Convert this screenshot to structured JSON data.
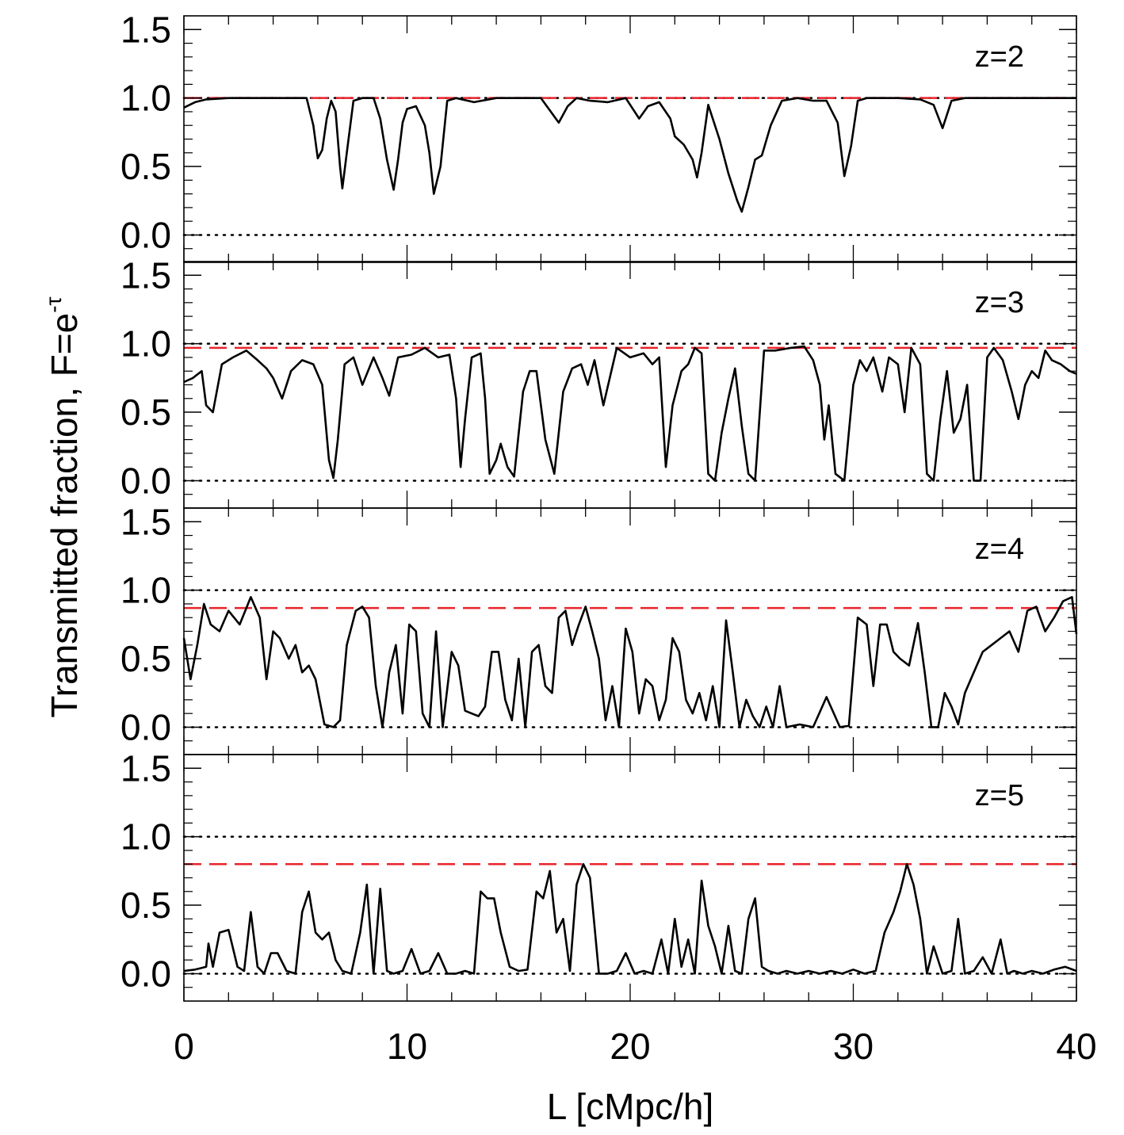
{
  "chart_data": {
    "type": "line",
    "layout": "4 vertically stacked panels sharing the x axis",
    "xlabel": "L [cMpc/h]",
    "ylabel_main": "Transmitted fraction, F=e",
    "ylabel_superscript": "-τ",
    "xlim": [
      0,
      40
    ],
    "ylim": [
      -0.2,
      1.6
    ],
    "x_ticks": [
      0,
      10,
      20,
      30,
      40
    ],
    "x_tick_labels": [
      "0",
      "10",
      "20",
      "30",
      "40"
    ],
    "y_ticks": [
      0.0,
      0.5,
      1.0,
      1.5
    ],
    "y_tick_labels": [
      "0.0",
      "0.5",
      "1.0",
      "1.5"
    ],
    "reference_lines": {
      "levels": [
        0.0,
        1.0
      ],
      "style": "dotted",
      "color": "#000000"
    },
    "mean_flux_line": {
      "style": "dashed",
      "color": "#e8232a"
    },
    "curve_color": "#000000",
    "panels": [
      {
        "label": "z=2",
        "mean_flux": 1.0,
        "x": [
          0,
          0.5,
          1,
          2,
          3,
          4,
          5,
          5.5,
          5.8,
          6.0,
          6.2,
          6.4,
          6.6,
          6.8,
          7.0,
          7.1,
          7.3,
          7.6,
          8,
          8.5,
          8.8,
          9.1,
          9.4,
          9.6,
          9.8,
          10.0,
          10.4,
          10.8,
          11.0,
          11.2,
          11.5,
          11.8,
          12.2,
          13,
          14,
          15,
          16,
          16.8,
          17.2,
          17.6,
          18.2,
          19,
          19.8,
          20.4,
          20.8,
          21.3,
          21.8,
          22.0,
          22.4,
          22.8,
          23.0,
          23.2,
          23.5,
          24.0,
          24.4,
          24.8,
          25.0,
          25.3,
          25.6,
          25.9,
          26.3,
          26.8,
          27.5,
          28.2,
          28.8,
          29.3,
          29.6,
          29.9,
          30.2,
          30.6,
          31.2,
          32,
          33,
          33.6,
          34.0,
          34.4,
          35,
          36,
          37,
          38,
          39,
          40
        ],
        "values": [
          0.93,
          0.97,
          0.99,
          1.0,
          1.0,
          1.0,
          1.0,
          1.0,
          0.8,
          0.56,
          0.62,
          0.85,
          0.98,
          0.9,
          0.5,
          0.34,
          0.6,
          0.98,
          1.0,
          1.0,
          0.85,
          0.55,
          0.33,
          0.55,
          0.82,
          0.92,
          0.94,
          0.8,
          0.6,
          0.3,
          0.5,
          0.98,
          1.0,
          0.97,
          1.0,
          1.0,
          1.0,
          0.82,
          0.94,
          1.0,
          0.98,
          0.97,
          1.0,
          0.85,
          0.94,
          0.97,
          0.85,
          0.72,
          0.66,
          0.55,
          0.42,
          0.6,
          0.95,
          0.7,
          0.45,
          0.25,
          0.17,
          0.35,
          0.55,
          0.58,
          0.8,
          0.98,
          1.0,
          0.98,
          0.98,
          0.82,
          0.43,
          0.65,
          0.98,
          1.0,
          1.0,
          1.0,
          0.99,
          0.95,
          0.78,
          0.98,
          1.0,
          1.0,
          1.0,
          1.0,
          1.0,
          1.0
        ]
      },
      {
        "label": "z=3",
        "mean_flux": 0.97,
        "x": [
          0,
          0.4,
          0.8,
          1.0,
          1.3,
          1.7,
          2.2,
          2.8,
          3.3,
          3.7,
          4.0,
          4.4,
          4.8,
          5.3,
          5.8,
          6.2,
          6.5,
          6.7,
          6.9,
          7.2,
          7.6,
          8.0,
          8.5,
          8.9,
          9.2,
          9.6,
          10.2,
          10.8,
          11.4,
          11.9,
          12.2,
          12.4,
          12.6,
          12.9,
          13.3,
          13.5,
          13.7,
          14.0,
          14.2,
          14.5,
          14.8,
          15.2,
          15.5,
          15.8,
          16.2,
          16.6,
          17.0,
          17.4,
          17.8,
          18.1,
          18.4,
          18.8,
          19.4,
          20.0,
          20.6,
          21.0,
          21.3,
          21.6,
          21.9,
          22.3,
          22.6,
          22.9,
          23.2,
          23.5,
          23.8,
          24.1,
          24.4,
          24.7,
          25.0,
          25.3,
          25.6,
          26.0,
          26.5,
          27.2,
          27.8,
          28.2,
          28.5,
          28.7,
          28.9,
          29.2,
          29.6,
          30.0,
          30.3,
          30.6,
          30.9,
          31.3,
          31.6,
          32.0,
          32.3,
          32.6,
          33.0,
          33.3,
          33.6,
          33.9,
          34.2,
          34.5,
          34.8,
          35.1,
          35.4,
          35.7,
          36.0,
          36.3,
          36.7,
          37.1,
          37.4,
          37.7,
          38.0,
          38.3,
          38.6,
          38.9,
          39.3,
          39.7,
          40
        ],
        "values": [
          0.72,
          0.75,
          0.8,
          0.55,
          0.5,
          0.85,
          0.9,
          0.95,
          0.88,
          0.82,
          0.75,
          0.6,
          0.8,
          0.88,
          0.85,
          0.7,
          0.15,
          0.02,
          0.3,
          0.85,
          0.9,
          0.7,
          0.9,
          0.75,
          0.62,
          0.9,
          0.92,
          0.97,
          0.9,
          0.92,
          0.6,
          0.1,
          0.45,
          0.9,
          0.93,
          0.6,
          0.05,
          0.15,
          0.27,
          0.1,
          0.03,
          0.65,
          0.8,
          0.8,
          0.3,
          0.05,
          0.65,
          0.82,
          0.85,
          0.7,
          0.88,
          0.55,
          0.97,
          0.9,
          0.93,
          0.85,
          0.9,
          0.1,
          0.55,
          0.8,
          0.85,
          0.97,
          0.93,
          0.05,
          0.0,
          0.35,
          0.6,
          0.82,
          0.4,
          0.05,
          0.0,
          0.95,
          0.95,
          0.97,
          0.98,
          0.88,
          0.7,
          0.3,
          0.55,
          0.05,
          0.0,
          0.7,
          0.88,
          0.8,
          0.9,
          0.65,
          0.9,
          0.85,
          0.5,
          0.97,
          0.85,
          0.05,
          0.0,
          0.45,
          0.8,
          0.35,
          0.45,
          0.7,
          0.0,
          0.0,
          0.9,
          0.97,
          0.88,
          0.65,
          0.45,
          0.7,
          0.8,
          0.75,
          0.95,
          0.88,
          0.85,
          0.8,
          0.78
        ]
      },
      {
        "label": "z=4",
        "mean_flux": 0.87,
        "x": [
          0,
          0.3,
          0.6,
          0.9,
          1.2,
          1.6,
          2.0,
          2.5,
          3.0,
          3.4,
          3.7,
          4.0,
          4.3,
          4.7,
          5.0,
          5.3,
          5.6,
          5.9,
          6.3,
          6.7,
          7.0,
          7.3,
          7.7,
          8.0,
          8.3,
          8.6,
          8.9,
          9.2,
          9.5,
          9.8,
          10.1,
          10.4,
          10.7,
          11.0,
          11.3,
          11.6,
          12.0,
          12.3,
          12.6,
          12.9,
          13.2,
          13.5,
          13.8,
          14.1,
          14.4,
          14.7,
          15.0,
          15.3,
          15.6,
          15.9,
          16.2,
          16.5,
          16.8,
          17.1,
          17.4,
          17.7,
          18.0,
          18.3,
          18.6,
          18.9,
          19.2,
          19.5,
          19.8,
          20.1,
          20.4,
          20.7,
          21.0,
          21.3,
          21.6,
          21.9,
          22.2,
          22.5,
          22.8,
          23.1,
          23.4,
          23.7,
          24.0,
          24.3,
          24.6,
          24.9,
          25.2,
          25.5,
          25.8,
          26.1,
          26.4,
          26.7,
          27.0,
          27.6,
          28.2,
          28.8,
          29.4,
          29.8,
          30.2,
          30.6,
          30.9,
          31.2,
          31.5,
          31.8,
          32.1,
          32.5,
          32.9,
          33.2,
          33.5,
          33.8,
          34.1,
          34.4,
          34.7,
          35.0,
          35.4,
          35.8,
          36.2,
          36.6,
          37.0,
          37.4,
          37.8,
          38.2,
          38.6,
          39.0,
          39.4,
          39.8,
          40
        ],
        "values": [
          0.65,
          0.35,
          0.6,
          0.9,
          0.75,
          0.7,
          0.85,
          0.75,
          0.95,
          0.8,
          0.35,
          0.7,
          0.65,
          0.5,
          0.6,
          0.4,
          0.45,
          0.35,
          0.02,
          0.0,
          0.05,
          0.6,
          0.85,
          0.88,
          0.8,
          0.3,
          0.0,
          0.4,
          0.6,
          0.1,
          0.75,
          0.7,
          0.1,
          0.0,
          0.7,
          0.0,
          0.55,
          0.45,
          0.12,
          0.1,
          0.08,
          0.15,
          0.55,
          0.55,
          0.2,
          0.05,
          0.5,
          0.0,
          0.55,
          0.6,
          0.3,
          0.25,
          0.8,
          0.85,
          0.6,
          0.75,
          0.88,
          0.7,
          0.5,
          0.05,
          0.3,
          0.0,
          0.72,
          0.55,
          0.1,
          0.35,
          0.3,
          0.05,
          0.2,
          0.65,
          0.55,
          0.2,
          0.1,
          0.25,
          0.05,
          0.3,
          0.0,
          0.78,
          0.4,
          0.0,
          0.2,
          0.08,
          0.0,
          0.15,
          0.0,
          0.3,
          0.0,
          0.02,
          0.0,
          0.22,
          0.0,
          0.01,
          0.8,
          0.75,
          0.3,
          0.75,
          0.75,
          0.55,
          0.5,
          0.45,
          0.76,
          0.4,
          0.0,
          0.0,
          0.25,
          0.15,
          0.02,
          0.25,
          0.4,
          0.55,
          0.6,
          0.65,
          0.7,
          0.55,
          0.85,
          0.88,
          0.7,
          0.8,
          0.92,
          0.95,
          0.68
        ]
      },
      {
        "label": "z=5",
        "mean_flux": 0.8,
        "x": [
          0,
          0.5,
          1.0,
          1.1,
          1.3,
          1.6,
          2.0,
          2.4,
          2.7,
          3.0,
          3.3,
          3.6,
          3.9,
          4.2,
          4.6,
          5.0,
          5.3,
          5.6,
          5.9,
          6.2,
          6.5,
          6.8,
          7.1,
          7.5,
          7.9,
          8.2,
          8.5,
          8.8,
          9.1,
          9.4,
          9.8,
          10.2,
          10.6,
          11.0,
          11.4,
          11.8,
          12.2,
          12.6,
          13.0,
          13.3,
          13.6,
          13.9,
          14.2,
          14.6,
          15.0,
          15.4,
          15.8,
          16.1,
          16.4,
          16.7,
          17.0,
          17.3,
          17.6,
          17.9,
          18.2,
          18.6,
          19.0,
          19.4,
          19.8,
          20.2,
          20.6,
          21.0,
          21.4,
          21.7,
          22.0,
          22.3,
          22.6,
          22.9,
          23.2,
          23.5,
          23.8,
          24.1,
          24.4,
          24.7,
          25.0,
          25.3,
          25.6,
          25.9,
          26.2,
          26.6,
          27.0,
          27.5,
          28.0,
          28.5,
          29.0,
          29.5,
          30.0,
          30.5,
          31.0,
          31.4,
          31.8,
          32.1,
          32.4,
          32.7,
          33.0,
          33.3,
          33.6,
          34.0,
          34.4,
          34.7,
          35.0,
          35.4,
          35.8,
          36.2,
          36.6,
          36.9,
          37.2,
          37.6,
          38.0,
          38.5,
          39.0,
          39.5,
          40
        ],
        "values": [
          0.02,
          0.03,
          0.05,
          0.22,
          0.05,
          0.3,
          0.32,
          0.05,
          0.02,
          0.45,
          0.05,
          0.0,
          0.15,
          0.15,
          0.02,
          0.0,
          0.45,
          0.6,
          0.3,
          0.25,
          0.3,
          0.1,
          0.02,
          0.0,
          0.3,
          0.65,
          0.0,
          0.62,
          0.02,
          0.0,
          0.02,
          0.18,
          0.0,
          0.02,
          0.15,
          0.0,
          0.0,
          0.02,
          0.0,
          0.6,
          0.55,
          0.55,
          0.3,
          0.05,
          0.02,
          0.03,
          0.6,
          0.55,
          0.75,
          0.3,
          0.4,
          0.02,
          0.65,
          0.8,
          0.7,
          0.0,
          0.0,
          0.02,
          0.15,
          0.0,
          0.02,
          0.0,
          0.25,
          0.0,
          0.4,
          0.05,
          0.25,
          0.0,
          0.68,
          0.35,
          0.2,
          0.0,
          0.35,
          0.02,
          0.0,
          0.4,
          0.55,
          0.05,
          0.02,
          0.0,
          0.02,
          0.0,
          0.02,
          0.0,
          0.02,
          0.0,
          0.03,
          0.0,
          0.02,
          0.3,
          0.45,
          0.6,
          0.8,
          0.65,
          0.4,
          0.0,
          0.2,
          0.0,
          0.02,
          0.4,
          0.0,
          0.02,
          0.12,
          0.0,
          0.25,
          0.0,
          0.02,
          0.0,
          0.02,
          0.0,
          0.03,
          0.05,
          0.02
        ]
      }
    ]
  }
}
